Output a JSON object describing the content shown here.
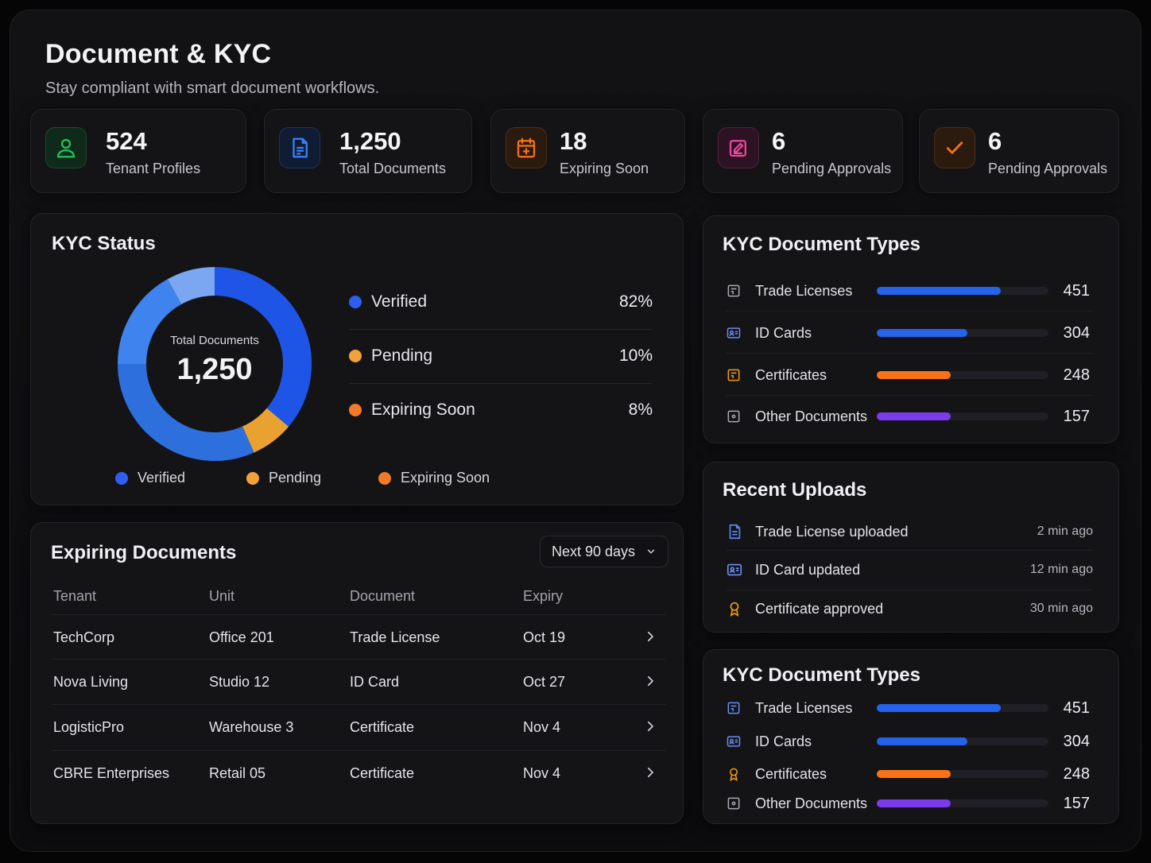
{
  "header": {
    "title": "Document & KYC",
    "subtitle": "Stay compliant with smart document workflows."
  },
  "stats": [
    {
      "value": "524",
      "label": "Tenant Profiles",
      "icon": "user-icon",
      "color": "#22c55e"
    },
    {
      "value": "1,250",
      "label": "Total Documents",
      "icon": "document-icon",
      "color": "#3b82f6"
    },
    {
      "value": "18",
      "label": "Expiring Soon",
      "icon": "calendar-icon",
      "color": "#f97316"
    },
    {
      "value": "6",
      "label": "Pending Approvals",
      "icon": "edit-icon",
      "color": "#ec4899"
    },
    {
      "value": "6",
      "label": "Pending Approvals",
      "icon": "check-icon",
      "color": "#f97316"
    }
  ],
  "kyc_status": {
    "title": "KYC Status",
    "center_label": "Total Documents",
    "center_value": "1,250",
    "legend": [
      {
        "name": "Verified",
        "percent": "82%",
        "color": "#2f5ff0"
      },
      {
        "name": "Pending",
        "percent": "10%",
        "color": "#f2a23a"
      },
      {
        "name": "Expiring Soon",
        "percent": "8%",
        "color": "#f27a2a"
      }
    ],
    "bottom_legend": [
      "Verified",
      "Pending",
      "Expiring Soon"
    ]
  },
  "expiring": {
    "title": "Expiring Documents",
    "filter": "Next 90 days",
    "columns": [
      "Tenant",
      "Unit",
      "Document",
      "Expiry"
    ],
    "rows": [
      {
        "tenant": "TechCorp",
        "unit": "Office 201",
        "document": "Trade License",
        "expiry": "Oct 19"
      },
      {
        "tenant": "Nova Living",
        "unit": "Studio 12",
        "document": "ID Card",
        "expiry": "Oct 27"
      },
      {
        "tenant": "LogisticPro",
        "unit": "Warehouse 3",
        "document": "Certificate",
        "expiry": "Nov 4"
      },
      {
        "tenant": "CBRE Enterprises",
        "unit": "Retail 05",
        "document": "Certificate",
        "expiry": "Nov 4"
      }
    ]
  },
  "doc_types_top": {
    "title": "KYC Document Types",
    "items": [
      {
        "name": "Trade Licenses",
        "value": "451",
        "fill": 0.72,
        "color": "#2563eb",
        "icon": "license-icon"
      },
      {
        "name": "ID Cards",
        "value": "304",
        "fill": 0.53,
        "color": "#2563eb",
        "icon": "id-card-icon"
      },
      {
        "name": "Certificates",
        "value": "248",
        "fill": 0.43,
        "color": "#f97316",
        "icon": "certificate-icon"
      },
      {
        "name": "Other Documents",
        "value": "157",
        "fill": 0.43,
        "color": "#7c3aed",
        "icon": "file-icon"
      }
    ]
  },
  "recent_uploads": {
    "title": "Recent Uploads",
    "items": [
      {
        "text": "Trade License uploaded",
        "time": "2 min ago",
        "icon": "document-icon"
      },
      {
        "text": "ID Card updated",
        "time": "12 min ago",
        "icon": "id-card-icon"
      },
      {
        "text": "Certificate approved",
        "time": "30 min ago",
        "icon": "award-icon"
      }
    ]
  },
  "doc_types_bottom": {
    "title": "KYC Document Types",
    "items": [
      {
        "name": "Trade Licenses",
        "value": "451",
        "fill": 0.72,
        "color": "#2563eb",
        "icon": "license-icon"
      },
      {
        "name": "ID Cards",
        "value": "304",
        "fill": 0.53,
        "color": "#2563eb",
        "icon": "id-card-icon"
      },
      {
        "name": "Certificates",
        "value": "248",
        "fill": 0.43,
        "color": "#f97316",
        "icon": "award-icon"
      },
      {
        "name": "Other Documents",
        "value": "157",
        "fill": 0.43,
        "color": "#7c3aed",
        "icon": "file-icon"
      }
    ]
  }
}
